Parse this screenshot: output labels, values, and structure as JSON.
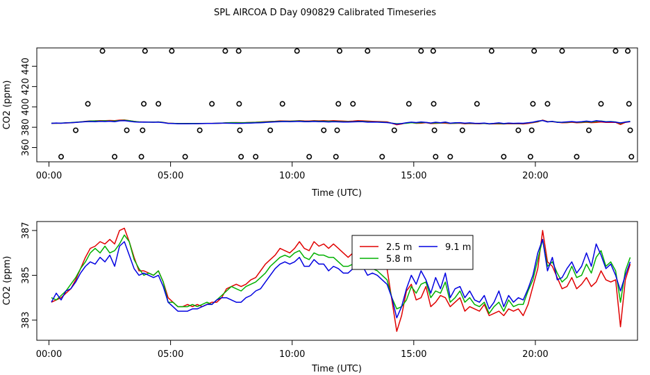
{
  "title": "SPL AIRCOA D  Day 090829  Calibrated Timeseries",
  "colors": {
    "s1": "#e00000",
    "s2": "#00b000",
    "s3": "#0000e0"
  },
  "chart_data": [
    {
      "type": "scatter+line",
      "xlabel": "Time (UTC)",
      "ylabel": "CO2 (ppm)",
      "xlim": [
        -0.5,
        24.2
      ],
      "ylim": [
        346,
        458
      ],
      "x_ticks": [
        0,
        5,
        10,
        15,
        20
      ],
      "x_tick_labels": [
        "00:00",
        "05:00",
        "10:00",
        "15:00",
        "20:00"
      ],
      "y_ticks": [
        360,
        380,
        400,
        420,
        440
      ],
      "calibration_points": [
        {
          "x": 0.5,
          "y": 351
        },
        {
          "x": 1.1,
          "y": 377
        },
        {
          "x": 1.6,
          "y": 403
        },
        {
          "x": 2.2,
          "y": 455
        },
        {
          "x": 2.7,
          "y": 351
        },
        {
          "x": 3.2,
          "y": 377
        },
        {
          "x": 3.8,
          "y": 351
        },
        {
          "x": 3.85,
          "y": 377
        },
        {
          "x": 3.9,
          "y": 403
        },
        {
          "x": 3.95,
          "y": 455
        },
        {
          "x": 4.5,
          "y": 403
        },
        {
          "x": 5.05,
          "y": 455
        },
        {
          "x": 5.6,
          "y": 351
        },
        {
          "x": 6.2,
          "y": 377
        },
        {
          "x": 6.7,
          "y": 403
        },
        {
          "x": 7.25,
          "y": 455
        },
        {
          "x": 7.8,
          "y": 455
        },
        {
          "x": 7.82,
          "y": 403
        },
        {
          "x": 7.85,
          "y": 377
        },
        {
          "x": 7.9,
          "y": 351
        },
        {
          "x": 8.5,
          "y": 351
        },
        {
          "x": 9.1,
          "y": 377
        },
        {
          "x": 9.6,
          "y": 403
        },
        {
          "x": 10.2,
          "y": 455
        },
        {
          "x": 10.7,
          "y": 351
        },
        {
          "x": 11.3,
          "y": 377
        },
        {
          "x": 11.8,
          "y": 351
        },
        {
          "x": 11.85,
          "y": 377
        },
        {
          "x": 11.9,
          "y": 403
        },
        {
          "x": 11.95,
          "y": 455
        },
        {
          "x": 12.5,
          "y": 403
        },
        {
          "x": 13.1,
          "y": 455
        },
        {
          "x": 13.7,
          "y": 351
        },
        {
          "x": 14.2,
          "y": 377
        },
        {
          "x": 14.8,
          "y": 403
        },
        {
          "x": 15.3,
          "y": 455
        },
        {
          "x": 15.8,
          "y": 455
        },
        {
          "x": 15.82,
          "y": 403
        },
        {
          "x": 15.85,
          "y": 377
        },
        {
          "x": 15.9,
          "y": 351
        },
        {
          "x": 16.5,
          "y": 351
        },
        {
          "x": 17.0,
          "y": 377
        },
        {
          "x": 17.6,
          "y": 403
        },
        {
          "x": 18.2,
          "y": 455
        },
        {
          "x": 18.7,
          "y": 351
        },
        {
          "x": 19.3,
          "y": 377
        },
        {
          "x": 19.8,
          "y": 351
        },
        {
          "x": 19.85,
          "y": 377
        },
        {
          "x": 19.9,
          "y": 403
        },
        {
          "x": 19.95,
          "y": 455
        },
        {
          "x": 20.5,
          "y": 403
        },
        {
          "x": 21.1,
          "y": 455
        },
        {
          "x": 21.7,
          "y": 351
        },
        {
          "x": 22.2,
          "y": 377
        },
        {
          "x": 22.7,
          "y": 403
        },
        {
          "x": 23.3,
          "y": 455
        },
        {
          "x": 23.8,
          "y": 455
        },
        {
          "x": 23.85,
          "y": 403
        },
        {
          "x": 23.9,
          "y": 377
        },
        {
          "x": 23.95,
          "y": 351
        }
      ],
      "series_ref": "same as lower panel"
    },
    {
      "type": "line",
      "xlabel": "Time (UTC)",
      "ylabel": "CO2 (ppm)",
      "xlim": [
        -0.5,
        24.2
      ],
      "ylim": [
        382.1,
        387.4
      ],
      "x_ticks": [
        0,
        5,
        10,
        15,
        20
      ],
      "x_tick_labels": [
        "00:00",
        "05:00",
        "10:00",
        "15:00",
        "20:00"
      ],
      "y_ticks": [
        383,
        385,
        387
      ],
      "legend": {
        "position": "top-center"
      },
      "x": [
        0.1,
        0.3,
        0.5,
        0.7,
        0.9,
        1.1,
        1.3,
        1.5,
        1.7,
        1.9,
        2.1,
        2.3,
        2.5,
        2.7,
        2.9,
        3.1,
        3.3,
        3.5,
        3.7,
        3.9,
        4.1,
        4.3,
        4.5,
        4.7,
        4.9,
        5.1,
        5.3,
        5.5,
        5.7,
        5.9,
        6.1,
        6.3,
        6.5,
        6.7,
        6.9,
        7.1,
        7.3,
        7.5,
        7.7,
        7.9,
        8.1,
        8.3,
        8.5,
        8.7,
        8.9,
        9.1,
        9.3,
        9.5,
        9.7,
        9.9,
        10.1,
        10.3,
        10.5,
        10.7,
        10.9,
        11.1,
        11.3,
        11.5,
        11.7,
        11.9,
        12.1,
        12.3,
        12.5,
        12.7,
        12.9,
        13.1,
        13.3,
        13.5,
        13.7,
        13.9,
        14.1,
        14.3,
        14.5,
        14.7,
        14.9,
        15.1,
        15.3,
        15.5,
        15.7,
        15.9,
        16.1,
        16.3,
        16.5,
        16.7,
        16.9,
        17.1,
        17.3,
        17.5,
        17.7,
        17.9,
        18.1,
        18.3,
        18.5,
        18.7,
        18.9,
        19.1,
        19.3,
        19.5,
        19.7,
        19.9,
        20.1,
        20.3,
        20.5,
        20.7,
        20.9,
        21.1,
        21.3,
        21.5,
        21.7,
        21.9,
        22.1,
        22.3,
        22.5,
        22.7,
        22.9,
        23.1,
        23.3,
        23.5,
        23.7,
        23.9
      ],
      "series": [
        {
          "name": "2.5 m",
          "values": [
            383.8,
            383.9,
            384.0,
            384.2,
            384.4,
            384.8,
            385.3,
            385.8,
            386.2,
            386.3,
            386.5,
            386.4,
            386.6,
            386.4,
            387.0,
            387.1,
            386.5,
            385.8,
            385.2,
            385.2,
            385.1,
            385.0,
            385.2,
            384.7,
            384.0,
            383.8,
            383.6,
            383.6,
            383.7,
            383.6,
            383.7,
            383.6,
            383.7,
            383.8,
            383.8,
            384.0,
            384.4,
            384.5,
            384.6,
            384.5,
            384.6,
            384.8,
            384.9,
            385.2,
            385.5,
            385.7,
            385.9,
            386.2,
            386.1,
            386.0,
            386.2,
            386.5,
            386.2,
            386.1,
            386.5,
            386.3,
            386.4,
            386.2,
            386.4,
            386.2,
            386.0,
            385.8,
            386.0,
            386.5,
            386.3,
            386.0,
            385.8,
            385.6,
            385.5,
            385.3,
            383.9,
            382.5,
            383.2,
            384.3,
            384.6,
            383.9,
            384.0,
            384.5,
            383.6,
            383.8,
            384.1,
            384.0,
            383.6,
            383.8,
            384.0,
            383.4,
            383.6,
            383.5,
            383.4,
            383.7,
            383.2,
            383.3,
            383.4,
            383.2,
            383.5,
            383.4,
            383.5,
            383.2,
            383.7,
            384.5,
            385.3,
            387.0,
            385.6,
            385.4,
            384.9,
            384.4,
            384.5,
            384.9,
            384.4,
            384.6,
            384.9,
            384.5,
            384.7,
            385.2,
            384.8,
            384.7,
            384.8,
            382.7,
            384.8,
            385.5
          ]
        },
        {
          "name": "5.8 m",
          "values": [
            384.0,
            383.9,
            384.1,
            384.3,
            384.6,
            384.9,
            385.3,
            385.6,
            386.0,
            386.2,
            386.0,
            386.3,
            386.0,
            386.1,
            386.4,
            386.8,
            386.5,
            385.7,
            385.3,
            385.0,
            385.1,
            385.0,
            385.2,
            384.7,
            383.8,
            383.8,
            383.6,
            383.6,
            383.6,
            383.7,
            383.6,
            383.7,
            383.8,
            383.7,
            383.9,
            384.1,
            384.3,
            384.5,
            384.4,
            384.3,
            384.5,
            384.6,
            384.7,
            384.9,
            385.1,
            385.4,
            385.6,
            385.8,
            385.9,
            385.8,
            386.0,
            386.1,
            385.8,
            385.7,
            386.0,
            385.9,
            385.9,
            385.8,
            385.8,
            385.6,
            385.4,
            385.4,
            385.5,
            385.7,
            385.7,
            385.4,
            385.3,
            385.2,
            385.0,
            384.8,
            384.0,
            383.5,
            383.6,
            383.9,
            384.5,
            384.2,
            384.6,
            384.7,
            384.0,
            384.3,
            384.2,
            384.7,
            383.8,
            384.0,
            384.3,
            383.8,
            384.0,
            383.7,
            383.6,
            383.8,
            383.3,
            383.6,
            383.8,
            383.4,
            383.9,
            383.6,
            383.7,
            383.7,
            384.3,
            384.8,
            385.7,
            386.6,
            385.4,
            385.6,
            385.1,
            384.7,
            384.9,
            385.4,
            384.9,
            385.0,
            385.5,
            385.1,
            385.8,
            386.1,
            385.4,
            385.6,
            385.2,
            383.8,
            385.2,
            385.8
          ]
        },
        {
          "name": "9.1 m",
          "values": [
            383.8,
            384.2,
            383.9,
            384.3,
            384.4,
            384.7,
            385.1,
            385.4,
            385.6,
            385.5,
            385.8,
            385.6,
            385.9,
            385.4,
            386.3,
            386.5,
            385.9,
            385.3,
            385.0,
            385.1,
            385.0,
            384.9,
            385.0,
            384.5,
            383.8,
            383.6,
            383.4,
            383.4,
            383.4,
            383.5,
            383.5,
            383.6,
            383.7,
            383.7,
            383.9,
            384.0,
            384.0,
            383.9,
            383.8,
            383.8,
            384.0,
            384.1,
            384.3,
            384.4,
            384.7,
            385.0,
            385.3,
            385.5,
            385.6,
            385.5,
            385.6,
            385.8,
            385.4,
            385.4,
            385.7,
            385.5,
            385.5,
            385.2,
            385.4,
            385.3,
            385.1,
            385.1,
            385.3,
            385.4,
            385.4,
            385.0,
            385.1,
            385.0,
            384.8,
            384.6,
            384.0,
            383.1,
            383.6,
            384.4,
            385.0,
            384.6,
            385.2,
            384.8,
            384.2,
            384.9,
            384.4,
            385.1,
            384.0,
            384.4,
            384.5,
            384.0,
            384.3,
            383.9,
            383.8,
            384.1,
            383.5,
            383.8,
            384.3,
            383.6,
            384.1,
            383.8,
            384.0,
            383.9,
            384.4,
            385.0,
            386.0,
            386.6,
            385.2,
            385.8,
            384.8,
            384.9,
            385.3,
            385.6,
            385.1,
            385.4,
            386.0,
            385.4,
            386.4,
            385.9,
            385.3,
            385.5,
            385.0,
            384.3,
            385.0,
            385.6
          ]
        }
      ]
    }
  ]
}
